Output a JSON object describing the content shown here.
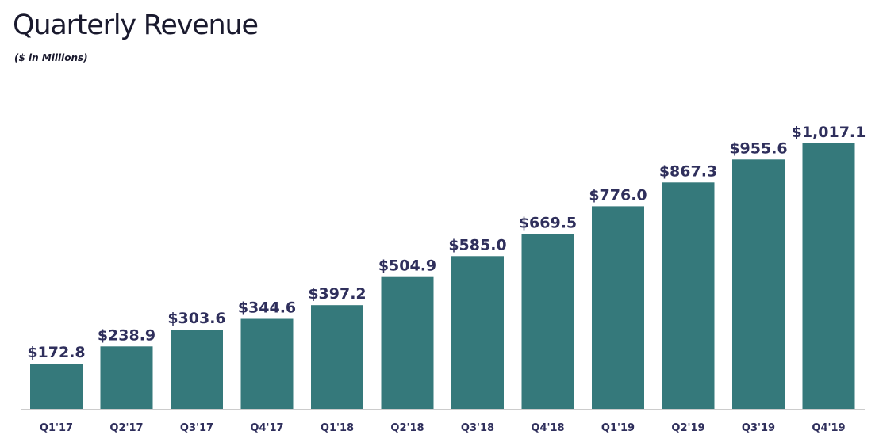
{
  "title": "Quarterly Revenue",
  "subtitle": "($ in Millions)",
  "colors": {
    "bar": "#35797b",
    "value_label": "#2f2f5c",
    "tick_label": "#2f2f5c",
    "baseline": "#cccccc"
  },
  "chart_data": {
    "type": "bar",
    "title": "Quarterly Revenue",
    "subtitle": "($ in Millions)",
    "xlabel": "",
    "ylabel": "",
    "ylim": [
      0,
      1017.1
    ],
    "grid": false,
    "categories": [
      "Q1'17",
      "Q2'17",
      "Q3'17",
      "Q4'17",
      "Q1'18",
      "Q2'18",
      "Q3'18",
      "Q4'18",
      "Q1'19",
      "Q2'19",
      "Q3'19",
      "Q4'19"
    ],
    "values": [
      172.8,
      238.9,
      303.6,
      344.6,
      397.2,
      504.9,
      585.0,
      669.5,
      776.0,
      867.3,
      955.6,
      1017.1
    ],
    "value_labels": [
      "$172.8",
      "$238.9",
      "$303.6",
      "$344.6",
      "$397.2",
      "$504.9",
      "$585.0",
      "$669.5",
      "$776.0",
      "$867.3",
      "$955.6",
      "$1,017.1"
    ]
  }
}
